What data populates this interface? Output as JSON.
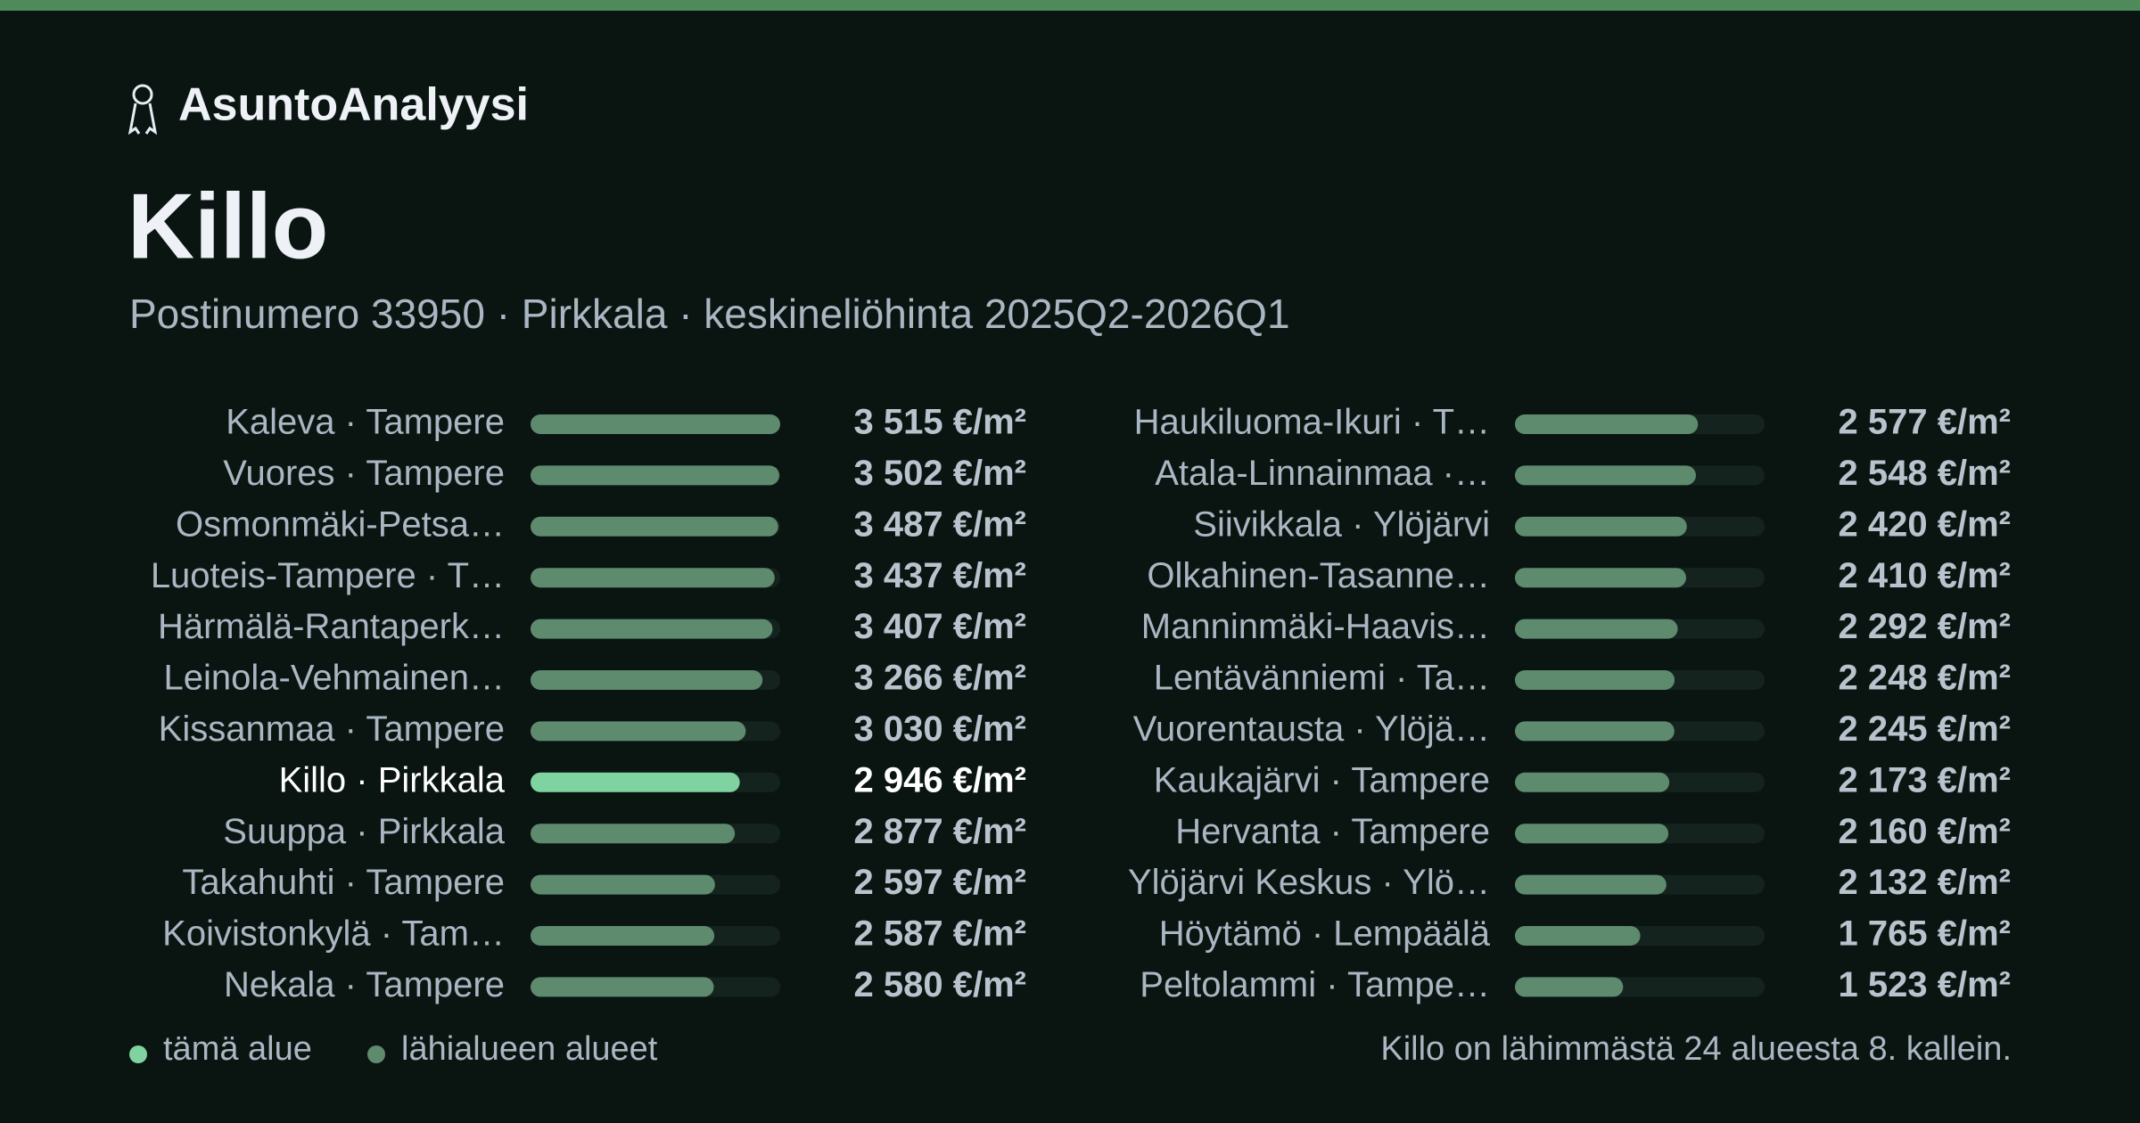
{
  "brand": "AsuntoAnalyysi",
  "chart_data": {
    "type": "bar",
    "orientation": "horizontal",
    "title": "Killo",
    "subtitle": "Postinumero 33950 · Pirkkala · keskineliöhinta 2025Q2-2026Q1",
    "categories": [
      "Kaleva · Tampere",
      "Vuores · Tampere",
      "Osmonmäki-Petsa…",
      "Luoteis-Tampere · T…",
      "Härmälä-Rantaperk…",
      "Leinola-Vehmainen…",
      "Kissanmaa · Tampere",
      "Killo · Pirkkala",
      "Suuppa · Pirkkala",
      "Takahuhti · Tampere",
      "Koivistonkylä · Tam…",
      "Nekala · Tampere",
      "Haukiluoma-Ikuri · T…",
      "Atala-Linnainmaa ·…",
      "Siivikkala · Ylöjärvi",
      "Olkahinen-Tasanne…",
      "Manninmäki-Haavis…",
      "Lentävänniemi · Ta…",
      "Vuorentausta · Ylöjä…",
      "Kaukajärvi · Tampere",
      "Hervanta · Tampere",
      "Ylöjärvi Keskus · Ylö…",
      "Höytämö · Lempäälä",
      "Peltolammi · Tampe…"
    ],
    "values": [
      3515,
      3502,
      3487,
      3437,
      3407,
      3266,
      3030,
      2946,
      2877,
      2597,
      2587,
      2580,
      2577,
      2548,
      2420,
      2410,
      2292,
      2248,
      2245,
      2173,
      2160,
      2132,
      1765,
      1523
    ],
    "value_labels": [
      "3 515 €/m²",
      "3 502 €/m²",
      "3 487 €/m²",
      "3 437 €/m²",
      "3 407 €/m²",
      "3 266 €/m²",
      "3 030 €/m²",
      "2 946 €/m²",
      "2 877 €/m²",
      "2 597 €/m²",
      "2 587 €/m²",
      "2 580 €/m²",
      "2 577 €/m²",
      "2 548 €/m²",
      "2 420 €/m²",
      "2 410 €/m²",
      "2 292 €/m²",
      "2 248 €/m²",
      "2 245 €/m²",
      "2 173 €/m²",
      "2 160 €/m²",
      "2 132 €/m²",
      "1 765 €/m²",
      "1 523 €/m²"
    ],
    "color": "#5e8a6e",
    "highlight_color": "#7fd3a0",
    "highlight_index": 7,
    "xlim": [
      0,
      3515
    ],
    "legend": [
      {
        "name": "tämä alue",
        "color": "#7fd3a0"
      },
      {
        "name": "lähialueen alueet",
        "color": "#5e8a6e"
      }
    ],
    "note": "Killo on lähimmästä 24 alueesta 8. kallein."
  }
}
